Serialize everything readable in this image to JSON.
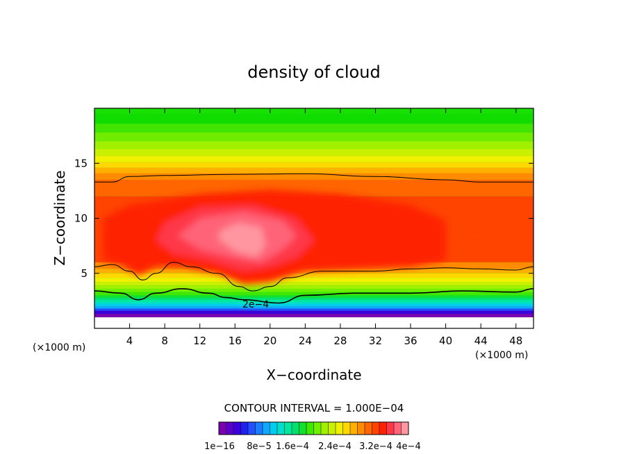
{
  "chart_data": {
    "type": "heatmap",
    "title": "density of cloud",
    "xlabel": "X−coordinate",
    "ylabel": "Z−coordinate",
    "x_unit": "(×1000 m)",
    "y_unit": "(×1000 m)",
    "xlim": [
      0,
      50
    ],
    "ylim": [
      0,
      20
    ],
    "x_ticks": [
      4,
      8,
      12,
      16,
      20,
      24,
      28,
      32,
      36,
      40,
      44,
      48
    ],
    "y_ticks": [
      5,
      10,
      15
    ],
    "contour_interval_text": "CONTOUR INTERVAL = 1.000E−04",
    "contour_label": "2e−4",
    "colorbar": {
      "min": 1e-16,
      "max": 0.0004,
      "colors": [
        "#7a00b0",
        "#5a00c8",
        "#3c00dc",
        "#2020f0",
        "#2050ff",
        "#1a7cff",
        "#10a8ff",
        "#00ccf0",
        "#00e0c8",
        "#00e8a0",
        "#00e070",
        "#10e030",
        "#40e800",
        "#70f000",
        "#a0f000",
        "#c8f000",
        "#f0f000",
        "#ffd800",
        "#ffb000",
        "#ff8c00",
        "#ff6600",
        "#ff4400",
        "#ff2200",
        "#ff3848",
        "#ff6478",
        "#ff96a0"
      ],
      "tick_labels": [
        "1e−16",
        "8e−5",
        "1.6e−4",
        "2.4e−4",
        "3.2e−4",
        "4e−4"
      ]
    }
  }
}
